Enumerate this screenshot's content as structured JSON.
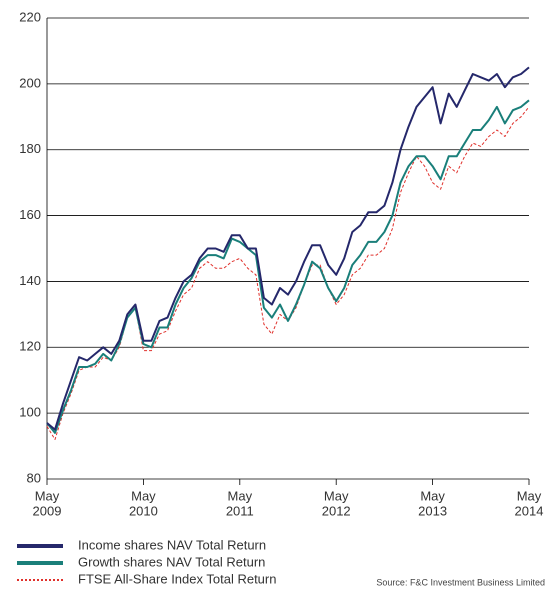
{
  "chart_data": {
    "type": "line",
    "x": [
      "2009-05",
      "2009-06",
      "2009-07",
      "2009-08",
      "2009-09",
      "2009-10",
      "2009-11",
      "2009-12",
      "2010-01",
      "2010-02",
      "2010-03",
      "2010-04",
      "2010-05",
      "2010-06",
      "2010-07",
      "2010-08",
      "2010-09",
      "2010-10",
      "2010-11",
      "2010-12",
      "2011-01",
      "2011-02",
      "2011-03",
      "2011-04",
      "2011-05",
      "2011-06",
      "2011-07",
      "2011-08",
      "2011-09",
      "2011-10",
      "2011-11",
      "2011-12",
      "2012-01",
      "2012-02",
      "2012-03",
      "2012-04",
      "2012-05",
      "2012-06",
      "2012-07",
      "2012-08",
      "2012-09",
      "2012-10",
      "2012-11",
      "2012-12",
      "2013-01",
      "2013-02",
      "2013-03",
      "2013-04",
      "2013-05",
      "2013-06",
      "2013-07",
      "2013-08",
      "2013-09",
      "2013-10",
      "2013-11",
      "2013-12",
      "2014-01",
      "2014-02",
      "2014-03",
      "2014-04",
      "2014-05"
    ],
    "series": [
      {
        "name": "Income shares NAV Total Return",
        "color": "#25286b",
        "style": "solid",
        "values": [
          97,
          95,
          103,
          110,
          117,
          116,
          118,
          120,
          118,
          122,
          130,
          133,
          122,
          122,
          128,
          129,
          135,
          140,
          142,
          147,
          150,
          150,
          149,
          154,
          154,
          150,
          150,
          135,
          133,
          138,
          136,
          140,
          146,
          151,
          151,
          145,
          142,
          147,
          155,
          157,
          161,
          161,
          163,
          170,
          180,
          187,
          193,
          196,
          199,
          188,
          197,
          193,
          198,
          203,
          202,
          201,
          203,
          199,
          202,
          203,
          205
        ]
      },
      {
        "name": "Growth shares NAV Total Return",
        "color": "#1a7f7a",
        "style": "solid",
        "values": [
          97,
          94,
          101,
          107,
          114,
          114,
          115,
          118,
          116,
          121,
          129,
          132,
          121,
          120,
          126,
          126,
          133,
          138,
          141,
          146,
          148,
          148,
          147,
          153,
          152,
          150,
          148,
          132,
          129,
          133,
          128,
          133,
          139,
          146,
          144,
          138,
          134,
          138,
          145,
          148,
          152,
          152,
          155,
          160,
          170,
          175,
          178,
          178,
          175,
          171,
          178,
          178,
          182,
          186,
          186,
          189,
          193,
          188,
          192,
          193,
          195
        ]
      },
      {
        "name": "FTSE All-Share Index Total Return",
        "color": "#e0312c",
        "style": "dotted",
        "values": [
          96,
          92,
          100,
          106,
          113,
          114,
          114,
          117,
          116,
          120,
          129,
          132,
          119,
          119,
          124,
          125,
          131,
          136,
          138,
          144,
          146,
          144,
          144,
          146,
          147,
          144,
          142,
          127,
          124,
          130,
          128,
          132,
          139,
          145,
          145,
          138,
          133,
          136,
          142,
          144,
          148,
          148,
          150,
          156,
          167,
          173,
          178,
          175,
          170,
          168,
          175,
          173,
          178,
          182,
          181,
          184,
          186,
          184,
          188,
          190,
          193
        ]
      }
    ],
    "xlim": [
      "2009-05",
      "2014-05"
    ],
    "xticks": [
      {
        "value": "2009-05",
        "label": [
          "May",
          "2009"
        ]
      },
      {
        "value": "2010-05",
        "label": [
          "May",
          "2010"
        ]
      },
      {
        "value": "2011-05",
        "label": [
          "May",
          "2011"
        ]
      },
      {
        "value": "2012-05",
        "label": [
          "May",
          "2012"
        ]
      },
      {
        "value": "2013-05",
        "label": [
          "May",
          "2013"
        ]
      },
      {
        "value": "2014-05",
        "label": [
          "May",
          "2014"
        ]
      }
    ],
    "ylim": [
      80,
      220
    ],
    "yticks": [
      80,
      100,
      120,
      140,
      160,
      180,
      200,
      220
    ],
    "grid": true,
    "source": "Source: F&C Investment Business Limited"
  }
}
